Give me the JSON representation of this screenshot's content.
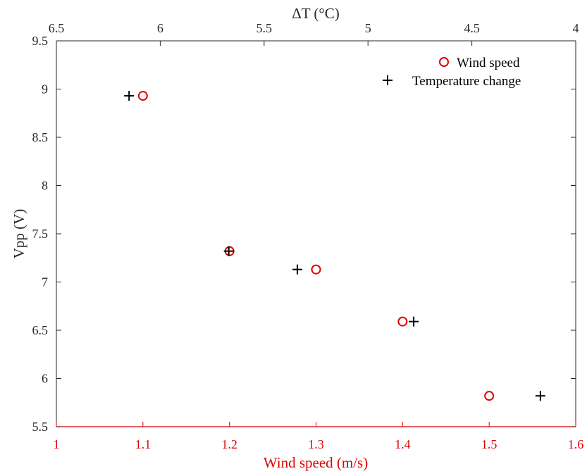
{
  "chart_data": {
    "type": "scatter",
    "xlabel": "Wind speed (m/s)",
    "x2label": "ΔT (°C)",
    "ylabel": "Vpp (V)",
    "xlim": [
      1,
      1.6
    ],
    "x2lim": [
      6.5,
      4
    ],
    "ylim": [
      5.5,
      9.5
    ],
    "xticks": [
      "1",
      "1.1",
      "1.2",
      "1.3",
      "1.4",
      "1.5",
      "1.6"
    ],
    "x2ticks": [
      "6.5",
      "6",
      "5.5",
      "5",
      "4.5",
      "4"
    ],
    "yticks": [
      "5.5",
      "6",
      "6.5",
      "7",
      "7.5",
      "8",
      "8.5",
      "9",
      "9.5"
    ],
    "grid": false,
    "legend_position": "top-right",
    "series": [
      {
        "name": "Wind speed",
        "marker": "circle",
        "axis": "bottom",
        "color": "#e00000",
        "points": [
          {
            "x": 1.1,
            "y": 8.93
          },
          {
            "x": 1.2,
            "y": 7.32
          },
          {
            "x": 1.3,
            "y": 7.13
          },
          {
            "x": 1.4,
            "y": 6.59
          },
          {
            "x": 1.5,
            "y": 5.82
          }
        ]
      },
      {
        "name": "Temperature change",
        "marker": "plus",
        "axis": "top",
        "color": "#000000",
        "points": [
          {
            "x": 6.15,
            "y": 8.93
          },
          {
            "x": 5.67,
            "y": 7.32
          },
          {
            "x": 5.34,
            "y": 7.13
          },
          {
            "x": 4.78,
            "y": 6.59
          },
          {
            "x": 4.17,
            "y": 5.82
          }
        ]
      }
    ]
  },
  "colors": {
    "bottom_axis": "#e00000",
    "axis": "#262626",
    "wind_marker": "#e00000",
    "temperature_marker": "#000000"
  }
}
